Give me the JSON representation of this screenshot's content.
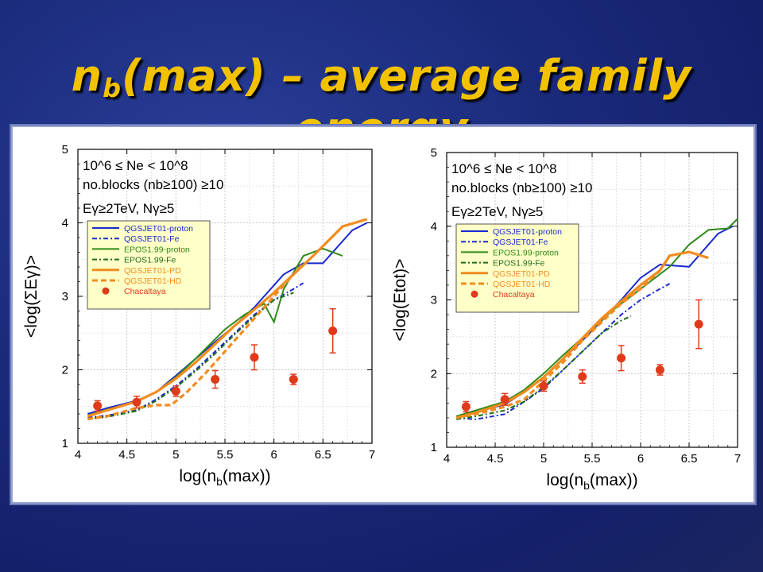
{
  "slide": {
    "title_main": "n",
    "title_sub": "b",
    "title_rest": "(max) – average family energy",
    "title_color": "#f2c200",
    "background_color": "#1d2c80"
  },
  "chart_data": [
    {
      "type": "line",
      "ylabel": "<log(ΣEγ)>",
      "xlabel_main": "log(n",
      "xlabel_sub": "b",
      "xlabel_end": "(max))",
      "xlim": [
        4,
        7
      ],
      "ylim": [
        1,
        5
      ],
      "xticks": [
        "4",
        "4.5",
        "5",
        "5.5",
        "6",
        "6.5",
        "7"
      ],
      "yticks": [
        "1",
        "2",
        "3",
        "4",
        "5"
      ],
      "grid": true,
      "annotations": [
        "10^6 ≤ Ne < 10^8",
        "no.blocks (nb≥100) ≥10",
        "Eγ≥2TeV, Nγ≥5"
      ],
      "legend_position": "middle-left",
      "series": [
        {
          "name": "QGSJET01-proton",
          "color": "#1a2ad0",
          "style": "solid",
          "x": [
            4.1,
            4.3,
            4.6,
            4.8,
            5.0,
            5.2,
            5.4,
            5.6,
            5.8,
            5.9,
            6.1,
            6.3,
            6.5,
            6.8,
            6.95
          ],
          "y": [
            1.4,
            1.48,
            1.58,
            1.7,
            1.92,
            2.15,
            2.38,
            2.6,
            2.85,
            3.0,
            3.3,
            3.45,
            3.45,
            3.9,
            4.0
          ]
        },
        {
          "name": "QGSJET01-Fe",
          "color": "#1a2ad0",
          "style": "dashdot",
          "x": [
            4.1,
            4.3,
            4.6,
            4.8,
            5.0,
            5.2,
            5.4,
            5.6,
            5.8,
            6.0,
            6.2,
            6.3
          ],
          "y": [
            1.35,
            1.38,
            1.45,
            1.6,
            1.78,
            2.0,
            2.25,
            2.5,
            2.75,
            2.95,
            3.1,
            3.18
          ]
        },
        {
          "name": "EPOS1.99-proton",
          "color": "#2e8b1a",
          "style": "solid",
          "x": [
            4.1,
            4.3,
            4.6,
            4.8,
            5.0,
            5.2,
            5.5,
            5.7,
            5.9,
            6.0,
            6.1,
            6.3,
            6.5,
            6.7
          ],
          "y": [
            1.38,
            1.46,
            1.57,
            1.7,
            1.9,
            2.15,
            2.55,
            2.75,
            2.9,
            2.65,
            3.1,
            3.55,
            3.65,
            3.55
          ]
        },
        {
          "name": "EPOS1.99-Fe",
          "color": "#206d14",
          "style": "dashdot",
          "x": [
            4.1,
            4.3,
            4.6,
            4.8,
            5.0,
            5.2,
            5.4,
            5.6,
            5.8,
            6.0,
            6.2
          ],
          "y": [
            1.33,
            1.36,
            1.44,
            1.58,
            1.76,
            1.98,
            2.22,
            2.48,
            2.73,
            2.95,
            3.05
          ]
        },
        {
          "name": "QGSJET01-PD",
          "color": "#f28c1e",
          "style": "solid",
          "x": [
            4.1,
            4.3,
            4.6,
            4.8,
            5.0,
            5.2,
            5.4,
            5.6,
            5.8,
            6.0,
            6.2,
            6.4,
            6.7,
            6.95
          ],
          "y": [
            1.37,
            1.45,
            1.57,
            1.7,
            1.88,
            2.1,
            2.35,
            2.6,
            2.82,
            3.05,
            3.3,
            3.55,
            3.95,
            4.05
          ]
        },
        {
          "name": "QGSJET01-HD",
          "color": "#f28c1e",
          "style": "dashed",
          "x": [
            4.1,
            4.3,
            4.6,
            4.8,
            4.95,
            5.1,
            5.3,
            5.5,
            5.7,
            5.9,
            6.1,
            6.3
          ],
          "y": [
            1.33,
            1.37,
            1.48,
            1.52,
            1.52,
            1.68,
            1.95,
            2.25,
            2.55,
            2.85,
            3.15,
            3.45
          ]
        }
      ],
      "data_points": {
        "name": "Chacaltaya",
        "color": "#e03a1a",
        "x": [
          4.2,
          4.6,
          5.0,
          5.4,
          5.8,
          6.2,
          6.6
        ],
        "y": [
          1.51,
          1.56,
          1.71,
          1.87,
          2.17,
          1.87,
          2.53
        ],
        "err": [
          0.07,
          0.08,
          0.07,
          0.12,
          0.17,
          0.07,
          0.3
        ]
      }
    },
    {
      "type": "line",
      "ylabel": "<log(Etot)>",
      "xlabel_main": "log(n",
      "xlabel_sub": "b",
      "xlabel_end": "(max))",
      "xlim": [
        4,
        7
      ],
      "ylim": [
        1,
        5
      ],
      "xticks": [
        "4",
        "4.5",
        "5",
        "5.5",
        "6",
        "6.5",
        "7"
      ],
      "yticks": [
        "1",
        "2",
        "3",
        "4",
        "5"
      ],
      "grid": true,
      "annotations": [
        "10^6 ≤ Ne < 10^8",
        "no.blocks (nb≥100) ≥10",
        "Eγ≥2TeV, Nγ≥5"
      ],
      "legend_position": "middle-left",
      "series": [
        {
          "name": "QGSJET01-proton",
          "color": "#1a2ad0",
          "style": "solid",
          "x": [
            4.1,
            4.3,
            4.6,
            4.8,
            5.0,
            5.2,
            5.4,
            5.6,
            5.8,
            6.0,
            6.2,
            6.5,
            6.8,
            6.95
          ],
          "y": [
            1.42,
            1.48,
            1.58,
            1.75,
            1.95,
            2.2,
            2.45,
            2.72,
            3.0,
            3.3,
            3.48,
            3.45,
            3.9,
            4.0
          ]
        },
        {
          "name": "QGSJET01-Fe",
          "color": "#1a2ad0",
          "style": "dashdot",
          "x": [
            4.1,
            4.3,
            4.6,
            4.8,
            5.0,
            5.2,
            5.4,
            5.6,
            5.8,
            6.0,
            6.2,
            6.3
          ],
          "y": [
            1.4,
            1.38,
            1.45,
            1.62,
            1.8,
            2.05,
            2.3,
            2.55,
            2.8,
            3.0,
            3.15,
            3.22
          ]
        },
        {
          "name": "EPOS1.99-proton",
          "color": "#2e8b1a",
          "style": "solid",
          "x": [
            4.1,
            4.3,
            4.6,
            4.8,
            5.0,
            5.2,
            5.5,
            5.7,
            5.9,
            6.1,
            6.3,
            6.5,
            6.7,
            6.9,
            7.0
          ],
          "y": [
            1.42,
            1.5,
            1.62,
            1.78,
            2.0,
            2.25,
            2.6,
            2.85,
            3.05,
            3.25,
            3.45,
            3.75,
            3.95,
            3.97,
            4.1
          ]
        },
        {
          "name": "EPOS1.99-Fe",
          "color": "#206d14",
          "style": "dashdot",
          "x": [
            4.1,
            4.3,
            4.6,
            4.8,
            5.0,
            5.2,
            5.4,
            5.6,
            5.8,
            5.9
          ],
          "y": [
            1.38,
            1.42,
            1.5,
            1.62,
            1.82,
            2.05,
            2.3,
            2.55,
            2.72,
            2.78
          ]
        },
        {
          "name": "QGSJET01-PD",
          "color": "#f28c1e",
          "style": "solid",
          "x": [
            4.1,
            4.3,
            4.6,
            4.8,
            5.0,
            5.2,
            5.4,
            5.6,
            5.8,
            6.0,
            6.2,
            6.3,
            6.5,
            6.7
          ],
          "y": [
            1.4,
            1.47,
            1.6,
            1.75,
            1.95,
            2.2,
            2.48,
            2.75,
            2.98,
            3.2,
            3.4,
            3.6,
            3.65,
            3.57
          ]
        },
        {
          "name": "QGSJET01-HD",
          "color": "#f28c1e",
          "style": "dashed",
          "x": [
            4.1,
            4.3,
            4.6,
            4.8,
            5.0,
            5.2,
            5.4,
            5.6,
            5.8,
            6.0,
            6.2,
            6.3
          ],
          "y": [
            1.4,
            1.45,
            1.55,
            1.65,
            1.9,
            2.15,
            2.45,
            2.7,
            2.95,
            3.15,
            3.4,
            3.6
          ]
        }
      ],
      "data_points": {
        "name": "Chacaltaya",
        "color": "#e03a1a",
        "x": [
          4.2,
          4.6,
          5.0,
          5.4,
          5.8,
          6.2,
          6.6
        ],
        "y": [
          1.55,
          1.65,
          1.83,
          1.96,
          2.21,
          2.05,
          2.67
        ],
        "err": [
          0.07,
          0.08,
          0.07,
          0.09,
          0.17,
          0.07,
          0.33
        ]
      }
    }
  ]
}
